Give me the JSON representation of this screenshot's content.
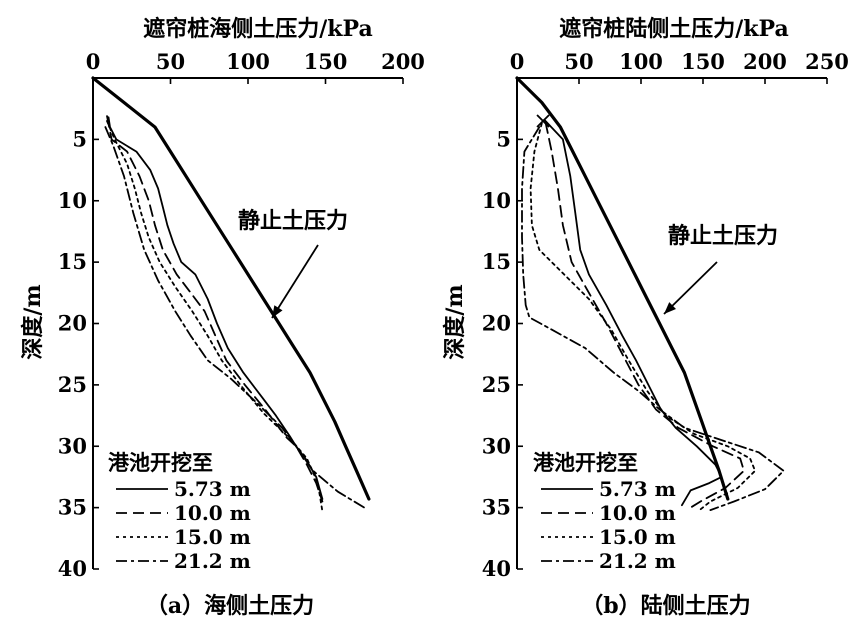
{
  "figure": {
    "legend_title": "港池开挖至",
    "ylabel": "深度/m"
  },
  "chart_data": [
    {
      "type": "line",
      "panel": "a",
      "title": "遮帘桩海侧土压力/kPa",
      "caption": "（a）海侧土压力",
      "xlabel": "遮帘桩海侧土压力/kPa",
      "ylabel": "深度/m",
      "x_axis_position": "top",
      "y_inverted": true,
      "xlim": [
        0,
        200
      ],
      "ylim": [
        0,
        40
      ],
      "xticks": [
        0,
        50,
        100,
        150,
        200
      ],
      "yticks": [
        5,
        10,
        15,
        20,
        25,
        30,
        35,
        40
      ],
      "annotation": {
        "text": "静止土压力",
        "target_series": "静止土压力"
      },
      "series": [
        {
          "name": "静止土压力",
          "style": "thick",
          "points": [
            [
              0,
              0
            ],
            [
              20,
              2
            ],
            [
              40,
              4
            ],
            [
              50,
              6
            ],
            [
              60,
              8
            ],
            [
              70,
              10
            ],
            [
              80,
              12
            ],
            [
              90,
              14
            ],
            [
              100,
              16
            ],
            [
              110,
              18
            ],
            [
              120,
              20
            ],
            [
              130,
              22
            ],
            [
              140,
              24
            ],
            [
              148,
              26
            ],
            [
              156,
              28
            ],
            [
              163,
              30
            ],
            [
              170,
              32
            ],
            [
              178,
              34.3
            ]
          ]
        },
        {
          "name": "5.73 m",
          "style": "solid",
          "points": [
            [
              10,
              3.2
            ],
            [
              11,
              4
            ],
            [
              15,
              5
            ],
            [
              28,
              6
            ],
            [
              37,
              7.5
            ],
            [
              42,
              9
            ],
            [
              45,
              10.5
            ],
            [
              48,
              12
            ],
            [
              52,
              13.5
            ],
            [
              57,
              15
            ],
            [
              66,
              16
            ],
            [
              74,
              18
            ],
            [
              80,
              20
            ],
            [
              87,
              22
            ],
            [
              97,
              24
            ],
            [
              109,
              26
            ],
            [
              118,
              27.5
            ],
            [
              127,
              29.2
            ],
            [
              131,
              30
            ],
            [
              137,
              31
            ],
            [
              144,
              32.5
            ],
            [
              148,
              34.3
            ]
          ]
        },
        {
          "name": "10.0 m",
          "style": "dash",
          "points": [
            [
              9,
              3.1
            ],
            [
              12,
              5
            ],
            [
              22,
              6
            ],
            [
              30,
              8
            ],
            [
              36,
              10
            ],
            [
              40,
              12
            ],
            [
              45,
              14
            ],
            [
              54,
              16
            ],
            [
              63,
              17.5
            ],
            [
              72,
              19
            ],
            [
              79,
              21
            ],
            [
              86,
              23
            ],
            [
              98,
              25
            ],
            [
              111,
              27
            ],
            [
              125,
              29.3
            ],
            [
              131,
              30
            ],
            [
              138,
              31.5
            ],
            [
              144,
              33
            ],
            [
              148,
              34.5
            ]
          ]
        },
        {
          "name": "15.0 m",
          "style": "dot",
          "points": [
            [
              9,
              3.5
            ],
            [
              14,
              5
            ],
            [
              22,
              7
            ],
            [
              27,
              9
            ],
            [
              31,
              11
            ],
            [
              36,
              13
            ],
            [
              43,
              15
            ],
            [
              53,
              17
            ],
            [
              64,
              19
            ],
            [
              74,
              21
            ],
            [
              83,
              23
            ],
            [
              95,
              25
            ],
            [
              110,
              27.3
            ],
            [
              128,
              29.5
            ],
            [
              138,
              31
            ],
            [
              145,
              33
            ],
            [
              148,
              35.3
            ]
          ]
        },
        {
          "name": "21.2 m",
          "style": "dashdot",
          "points": [
            [
              8,
              4
            ],
            [
              13,
              5.5
            ],
            [
              20,
              8
            ],
            [
              26,
              11
            ],
            [
              33,
              14
            ],
            [
              42,
              16.5
            ],
            [
              53,
              19
            ],
            [
              63,
              21
            ],
            [
              74,
              23
            ],
            [
              89,
              24.5
            ],
            [
              106,
              26.5
            ],
            [
              122,
              28.5
            ],
            [
              131,
              30
            ],
            [
              142,
              32
            ],
            [
              158,
              33.7
            ],
            [
              175,
              35
            ]
          ]
        }
      ]
    },
    {
      "type": "line",
      "panel": "b",
      "title": "遮帘桩陆侧土压力/kPa",
      "caption": "（b）陆侧土压力",
      "xlabel": "遮帘桩陆侧土压力/kPa",
      "ylabel": "深度/m",
      "x_axis_position": "top",
      "y_inverted": true,
      "xlim": [
        0,
        250
      ],
      "ylim": [
        0,
        40
      ],
      "xticks": [
        0,
        50,
        100,
        150,
        200,
        250
      ],
      "yticks": [
        5,
        10,
        15,
        20,
        25,
        30,
        35,
        40
      ],
      "annotation": {
        "text": "静止土压力",
        "target_series": "静止土压力"
      },
      "series": [
        {
          "name": "静止土压力",
          "style": "thick",
          "points": [
            [
              0,
              0
            ],
            [
              20,
              2
            ],
            [
              35,
              4
            ],
            [
              45,
              6
            ],
            [
              55,
              8
            ],
            [
              65,
              10
            ],
            [
              75,
              12
            ],
            [
              85,
              14
            ],
            [
              95,
              16
            ],
            [
              105,
              18
            ],
            [
              115,
              20
            ],
            [
              125,
              22
            ],
            [
              135,
              24
            ],
            [
              142,
              26
            ],
            [
              149,
              28
            ],
            [
              156,
              30
            ],
            [
              163,
              32
            ],
            [
              170,
              34.3
            ]
          ]
        },
        {
          "name": "5.73 m",
          "style": "solid",
          "points": [
            [
              22,
              3.4
            ],
            [
              37,
              5
            ],
            [
              43,
              8
            ],
            [
              47,
              11
            ],
            [
              51,
              14
            ],
            [
              58,
              16
            ],
            [
              72,
              18.5
            ],
            [
              85,
              21
            ],
            [
              96,
              23
            ],
            [
              106,
              25
            ],
            [
              116,
              27
            ],
            [
              128,
              28.5
            ],
            [
              145,
              30
            ],
            [
              160,
              31.5
            ],
            [
              165,
              32.5
            ],
            [
              155,
              33
            ],
            [
              140,
              33.6
            ],
            [
              133,
              34.8
            ]
          ]
        },
        {
          "name": "10.0 m",
          "style": "dash",
          "points": [
            [
              23,
              3.6
            ],
            [
              28,
              6
            ],
            [
              33,
              9
            ],
            [
              37,
              12
            ],
            [
              44,
              15
            ],
            [
              58,
              17.5
            ],
            [
              72,
              20
            ],
            [
              85,
              22.5
            ],
            [
              98,
              25
            ],
            [
              112,
              27
            ],
            [
              130,
              28.5
            ],
            [
              158,
              30
            ],
            [
              180,
              31
            ],
            [
              183,
              32
            ],
            [
              168,
              33.4
            ],
            [
              148,
              34.5
            ],
            [
              140,
              35
            ]
          ]
        },
        {
          "name": "15.0 m",
          "style": "dot",
          "points": [
            [
              20,
              3.7
            ],
            [
              14,
              6
            ],
            [
              11,
              9
            ],
            [
              12,
              12
            ],
            [
              18,
              14
            ],
            [
              38,
              16
            ],
            [
              58,
              18
            ],
            [
              76,
              20.5
            ],
            [
              90,
              23
            ],
            [
              105,
              25.5
            ],
            [
              120,
              27.5
            ],
            [
              143,
              29
            ],
            [
              170,
              30
            ],
            [
              188,
              31
            ],
            [
              192,
              32
            ],
            [
              178,
              33.4
            ],
            [
              156,
              34.5
            ],
            [
              146,
              35.3
            ]
          ]
        },
        {
          "name": "21.2 m",
          "style": "dashdot",
          "points": [
            [
              18,
              4
            ],
            [
              6,
              6
            ],
            [
              4,
              9
            ],
            [
              4,
              13
            ],
            [
              5,
              16
            ],
            [
              7,
              18.5
            ],
            [
              10,
              19.5
            ],
            [
              28,
              20.5
            ],
            [
              55,
              22
            ],
            [
              78,
              24
            ],
            [
              98,
              25.5
            ],
            [
              115,
              27
            ],
            [
              135,
              28.5
            ],
            [
              165,
              29.5
            ],
            [
              195,
              30.5
            ],
            [
              215,
              32
            ],
            [
              200,
              33.5
            ],
            [
              175,
              34.5
            ],
            [
              156,
              35.2
            ]
          ]
        }
      ]
    }
  ]
}
